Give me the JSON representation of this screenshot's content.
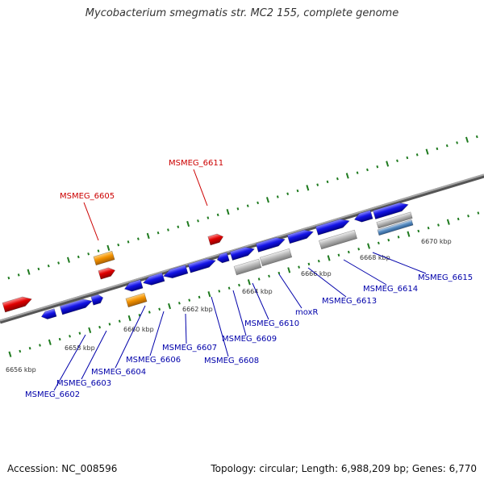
{
  "title": "Mycobacterium smegmatis str. MC2 155, complete genome",
  "footer": {
    "accession": "Accession: NC_008596",
    "topology": "Topology: circular; Length: 6,988,209 bp; Genes: 6,770"
  },
  "colors": {
    "background": "#ffffff",
    "backbone": "#808080",
    "scale_ticks": "#1e7a1e",
    "forward_gene": "#1414e6",
    "red_gene": "#e00000",
    "orange_gene": "#f39200",
    "gray_gene": "#b4b4b4",
    "label_red": "#cc0000",
    "label_blue": "#0000aa"
  },
  "scale_labels": [
    "6656 kbp",
    "6658 kbp",
    "6660 kbp",
    "6662 kbp",
    "6664 kbp",
    "6666 kbp",
    "6668 kbp",
    "6670 kbp"
  ],
  "gene_labels": [
    {
      "text": "MSMEG_6611",
      "color": "red"
    },
    {
      "text": "MSMEG_6605",
      "color": "red"
    },
    {
      "text": "MSMEG_6602",
      "color": "blue"
    },
    {
      "text": "MSMEG_6603",
      "color": "blue"
    },
    {
      "text": "MSMEG_6604",
      "color": "blue"
    },
    {
      "text": "MSMEG_6606",
      "color": "blue"
    },
    {
      "text": "MSMEG_6607",
      "color": "blue"
    },
    {
      "text": "MSMEG_6608",
      "color": "blue"
    },
    {
      "text": "MSMEG_6609",
      "color": "blue"
    },
    {
      "text": "MSMEG_6610",
      "color": "blue"
    },
    {
      "text": "moxR",
      "color": "blue"
    },
    {
      "text": "MSMEG_6613",
      "color": "blue"
    },
    {
      "text": "MSMEG_6614",
      "color": "blue"
    },
    {
      "text": "MSMEG_6615",
      "color": "blue"
    }
  ]
}
